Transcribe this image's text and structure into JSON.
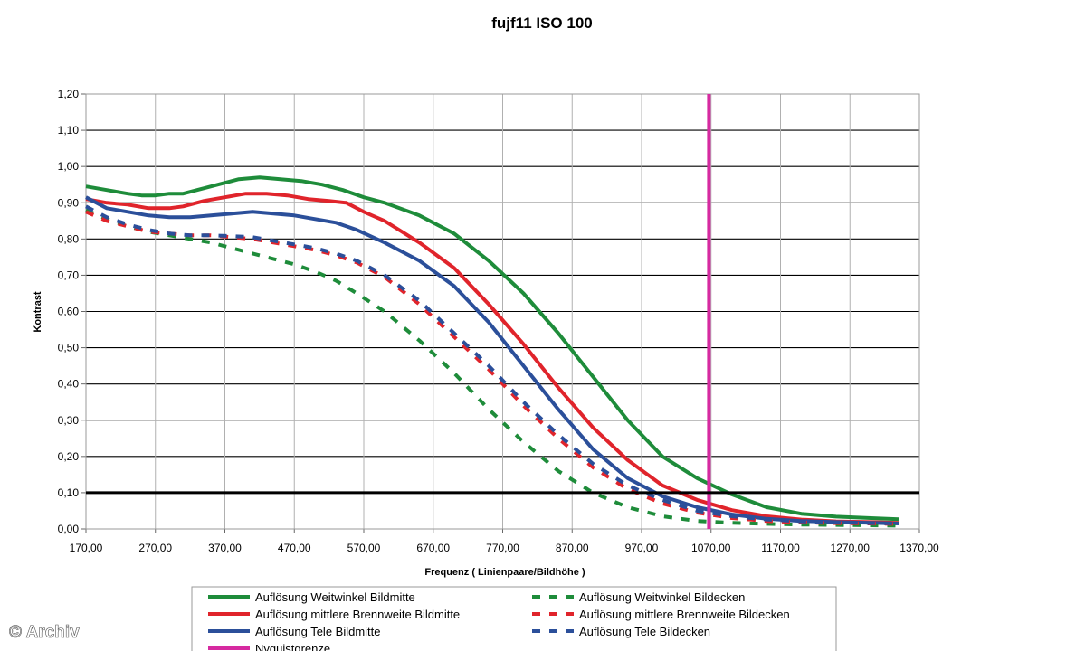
{
  "chart_data": {
    "type": "line",
    "title": "fujf11   ISO 100",
    "xlabel": "Frequenz ( Linienpaare/Bildhöhe )",
    "ylabel": "Kontrast",
    "xlim": [
      170,
      1370
    ],
    "ylim": [
      0,
      1.2
    ],
    "x_ticks": [
      "170,00",
      "270,00",
      "370,00",
      "470,00",
      "570,00",
      "670,00",
      "770,00",
      "870,00",
      "970,00",
      "1070,00",
      "1170,00",
      "1270,00",
      "1370,00"
    ],
    "y_ticks": [
      "0,00",
      "0,10",
      "0,20",
      "0,30",
      "0,40",
      "0,50",
      "0,60",
      "0,70",
      "0,80",
      "0,90",
      "1,00",
      "1,10",
      "1,20"
    ],
    "grid": true,
    "legend_position": "bottom",
    "reference_line": {
      "y": 0.1
    },
    "series": [
      {
        "name": "Auflösung Weitwinkel Bildmitte",
        "color": "#1e8c3a",
        "dash": "solid",
        "x": [
          170,
          200,
          230,
          250,
          270,
          290,
          310,
          330,
          350,
          370,
          390,
          420,
          450,
          480,
          510,
          540,
          570,
          600,
          650,
          700,
          750,
          800,
          850,
          900,
          950,
          1000,
          1050,
          1100,
          1150,
          1200,
          1250,
          1300,
          1340
        ],
        "y": [
          0.945,
          0.935,
          0.925,
          0.92,
          0.92,
          0.925,
          0.925,
          0.935,
          0.945,
          0.955,
          0.965,
          0.97,
          0.965,
          0.96,
          0.95,
          0.935,
          0.915,
          0.9,
          0.865,
          0.815,
          0.74,
          0.65,
          0.54,
          0.42,
          0.3,
          0.2,
          0.14,
          0.095,
          0.06,
          0.042,
          0.034,
          0.03,
          0.027
        ]
      },
      {
        "name": "Auflösung mittlere Brennweite Bildmitte",
        "color": "#e0242b",
        "dash": "solid",
        "x": [
          170,
          200,
          230,
          260,
          290,
          310,
          340,
          370,
          400,
          430,
          460,
          490,
          520,
          545,
          570,
          600,
          650,
          700,
          750,
          800,
          850,
          900,
          950,
          1000,
          1050,
          1100,
          1150,
          1200,
          1250,
          1300,
          1340
        ],
        "y": [
          0.91,
          0.9,
          0.895,
          0.885,
          0.885,
          0.89,
          0.905,
          0.915,
          0.925,
          0.925,
          0.92,
          0.91,
          0.905,
          0.9,
          0.875,
          0.85,
          0.79,
          0.72,
          0.62,
          0.51,
          0.39,
          0.28,
          0.19,
          0.12,
          0.08,
          0.052,
          0.035,
          0.026,
          0.021,
          0.019,
          0.017
        ]
      },
      {
        "name": "Auflösung Tele Bildmitte",
        "color": "#2b4f9a",
        "dash": "solid",
        "x": [
          170,
          200,
          230,
          260,
          290,
          320,
          350,
          380,
          410,
          440,
          470,
          500,
          530,
          560,
          600,
          650,
          700,
          750,
          800,
          850,
          900,
          950,
          1000,
          1050,
          1100,
          1150,
          1200,
          1250,
          1300,
          1340
        ],
        "y": [
          0.915,
          0.885,
          0.875,
          0.865,
          0.86,
          0.86,
          0.865,
          0.87,
          0.875,
          0.87,
          0.865,
          0.855,
          0.845,
          0.825,
          0.79,
          0.74,
          0.67,
          0.57,
          0.45,
          0.33,
          0.22,
          0.14,
          0.09,
          0.06,
          0.04,
          0.028,
          0.022,
          0.019,
          0.017,
          0.015
        ]
      },
      {
        "name": "Auflösung Weitwinkel Bildecken",
        "color": "#1e8c3a",
        "dash": "dashed",
        "x": [
          170,
          200,
          230,
          260,
          290,
          320,
          350,
          380,
          410,
          440,
          470,
          500,
          530,
          560,
          600,
          650,
          700,
          750,
          800,
          850,
          900,
          950,
          1000,
          1050,
          1100,
          1150,
          1200,
          1250,
          1300,
          1340
        ],
        "y": [
          0.88,
          0.855,
          0.835,
          0.82,
          0.81,
          0.8,
          0.79,
          0.775,
          0.76,
          0.745,
          0.73,
          0.71,
          0.685,
          0.65,
          0.6,
          0.52,
          0.43,
          0.33,
          0.24,
          0.16,
          0.1,
          0.06,
          0.035,
          0.022,
          0.017,
          0.014,
          0.012,
          0.011,
          0.01,
          0.009
        ]
      },
      {
        "name": "Auflösung mittlere Brennweite Bildecken",
        "color": "#e0242b",
        "dash": "dashed",
        "x": [
          170,
          200,
          230,
          260,
          290,
          320,
          350,
          380,
          410,
          440,
          470,
          500,
          530,
          560,
          600,
          650,
          700,
          750,
          800,
          850,
          900,
          950,
          1000,
          1050,
          1100,
          1150,
          1200,
          1250,
          1300,
          1340
        ],
        "y": [
          0.875,
          0.85,
          0.835,
          0.82,
          0.815,
          0.81,
          0.81,
          0.805,
          0.8,
          0.79,
          0.78,
          0.77,
          0.755,
          0.735,
          0.695,
          0.62,
          0.53,
          0.44,
          0.34,
          0.25,
          0.17,
          0.11,
          0.07,
          0.045,
          0.03,
          0.022,
          0.018,
          0.016,
          0.015,
          0.014
        ]
      },
      {
        "name": "Auflösung Tele Bildecken",
        "color": "#2b4f9a",
        "dash": "dashed",
        "x": [
          170,
          200,
          230,
          260,
          290,
          320,
          350,
          380,
          410,
          440,
          470,
          500,
          530,
          560,
          600,
          650,
          700,
          750,
          800,
          850,
          900,
          950,
          1000,
          1050,
          1100,
          1150,
          1200,
          1250,
          1300,
          1340
        ],
        "y": [
          0.89,
          0.86,
          0.84,
          0.825,
          0.815,
          0.81,
          0.81,
          0.808,
          0.805,
          0.795,
          0.785,
          0.775,
          0.76,
          0.74,
          0.7,
          0.63,
          0.54,
          0.45,
          0.35,
          0.26,
          0.18,
          0.12,
          0.08,
          0.05,
          0.035,
          0.026,
          0.021,
          0.018,
          0.016,
          0.015
        ]
      },
      {
        "name": "Nyquistgrenze",
        "color": "#d62aa0",
        "dash": "solid",
        "vertical": true,
        "x": [
          1067,
          1067
        ],
        "y": [
          0,
          1.2
        ]
      }
    ]
  },
  "watermark": "© Archiv",
  "colors": {
    "grid": "#9a9a9a",
    "axis": "#000000",
    "reference": "#000000"
  }
}
